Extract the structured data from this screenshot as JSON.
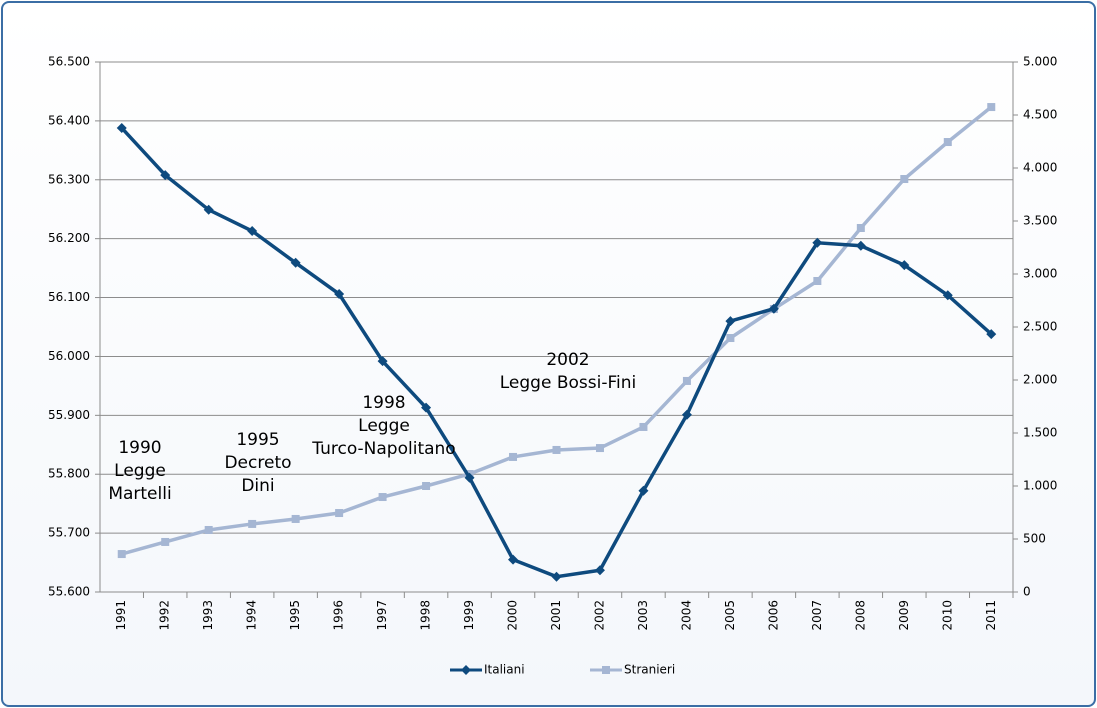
{
  "chart_data": {
    "type": "line",
    "categories": [
      "1991",
      "1992",
      "1993",
      "1994",
      "1995",
      "1996",
      "1997",
      "1998",
      "1999",
      "2000",
      "2001",
      "2002",
      "2003",
      "2004",
      "2005",
      "2006",
      "2007",
      "2008",
      "2009",
      "2010",
      "2011"
    ],
    "series": [
      {
        "name": "Italiani",
        "color": "#0e4a7e",
        "marker": "diamond",
        "values": [
          56.388,
          56.308,
          56.249,
          56.213,
          56.159,
          56.106,
          55.992,
          55.913,
          55.794,
          55.655,
          55.626,
          55.637,
          55.772,
          55.901,
          56.06,
          56.081,
          56.193,
          56.188,
          56.155,
          56.104,
          56.038
        ]
      },
      {
        "name": "Stranieri",
        "color": "#a5b6d3",
        "marker": "square",
        "axis": "y2",
        "values": [
          358,
          472,
          585,
          642,
          689,
          745,
          896,
          1000,
          1113,
          1274,
          1340,
          1358,
          1557,
          1991,
          2396,
          2670,
          2934,
          3434,
          3896,
          4245,
          4575
        ]
      }
    ],
    "ylim": [
      55.6,
      56.5
    ],
    "yticks": [
      {
        "value": 55.6,
        "label": "55.600"
      },
      {
        "value": 55.7,
        "label": "55.700"
      },
      {
        "value": 55.8,
        "label": "55.800"
      },
      {
        "value": 55.9,
        "label": "55.900"
      },
      {
        "value": 56.0,
        "label": "56.000"
      },
      {
        "value": 56.1,
        "label": "56.100"
      },
      {
        "value": 56.2,
        "label": "56.200"
      },
      {
        "value": 56.3,
        "label": "56.300"
      },
      {
        "value": 56.4,
        "label": "56.400"
      },
      {
        "value": 56.5,
        "label": "56.500"
      }
    ],
    "y2lim": [
      0,
      5000
    ],
    "y2ticks": [
      0,
      500,
      {
        "value": 1000,
        "label": "1.000"
      },
      {
        "value": 1500,
        "label": "1.500"
      },
      {
        "value": 2000,
        "label": "2.000"
      },
      {
        "value": 2500,
        "label": "2.500"
      },
      {
        "value": 3000,
        "label": "3.000"
      },
      {
        "value": 3500,
        "label": "3.500"
      },
      {
        "value": 4000,
        "label": "4.000"
      },
      {
        "value": 4500,
        "label": "4.500"
      },
      {
        "value": 5000,
        "label": "5.000"
      }
    ],
    "grid": true,
    "legend": "bottom",
    "annotations": [
      {
        "lines": [
          "1990",
          "Legge",
          "Martelli"
        ]
      },
      {
        "lines": [
          "1995",
          "Decreto",
          "Dini"
        ]
      },
      {
        "lines": [
          "1998",
          "Legge",
          "Turco-Napolitano"
        ]
      },
      {
        "lines": [
          "2002",
          "Legge Bossi-Fini"
        ]
      }
    ]
  }
}
